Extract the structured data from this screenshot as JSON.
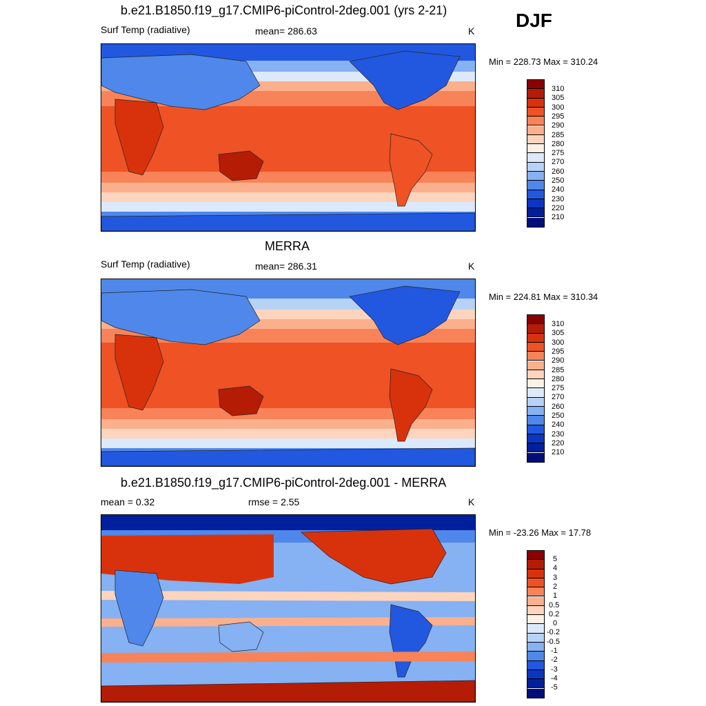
{
  "season": "DJF",
  "panels": [
    {
      "title": "b.e21.B1850.f19_g17.CMIP6-piControl-2deg.001 (yrs 2-21)",
      "left_label": "Surf Temp (radiative)",
      "center_label": "mean= 286.63",
      "units": "K",
      "minmax": "Min = 228.73 Max = 310.24",
      "colorbar_labels": [
        "310",
        "305",
        "300",
        "295",
        "290",
        "285",
        "280",
        "275",
        "270",
        "260",
        "250",
        "240",
        "230",
        "220",
        "210"
      ]
    },
    {
      "title": "MERRA",
      "left_label": "Surf Temp (radiative)",
      "center_label": "mean= 286.31",
      "units": "K",
      "minmax": "Min = 224.81 Max = 310.34",
      "colorbar_labels": [
        "310",
        "305",
        "300",
        "295",
        "290",
        "285",
        "280",
        "275",
        "270",
        "260",
        "250",
        "240",
        "230",
        "220",
        "210"
      ]
    },
    {
      "title": "b.e21.B1850.f19_g17.CMIP6-piControl-2deg.001 - MERRA",
      "left_label": "mean =   0.32",
      "center_label": "rmse =   2.55",
      "units": "K",
      "minmax": "Min = -23.26 Max =  17.78",
      "colorbar_labels": [
        "5",
        "4",
        "3",
        "2",
        "1",
        "0.5",
        "0.2",
        "0",
        "-0.2",
        "-0.5",
        "-1",
        "-2",
        "-3",
        "-4",
        "-5"
      ]
    }
  ],
  "colors": {
    "abs_scale": [
      "#8b0000",
      "#b51c05",
      "#d8320d",
      "#ef5224",
      "#f88358",
      "#fbb08d",
      "#fdd4bd",
      "#fdf0e6",
      "#dce9fa",
      "#b7d2f7",
      "#86b1f2",
      "#4f88ea",
      "#2258e0",
      "#0b36c2",
      "#001f9c",
      "#000e7c"
    ],
    "diff_scale": [
      "#8b0000",
      "#b51c05",
      "#d8320d",
      "#ef5224",
      "#f88358",
      "#fbb08d",
      "#fdd4bd",
      "#fdf0e6",
      "#dce9fa",
      "#b7d2f7",
      "#86b1f2",
      "#4f88ea",
      "#2258e0",
      "#0b36c2",
      "#001f9c",
      "#000e7c"
    ],
    "coastline": "#222222"
  }
}
